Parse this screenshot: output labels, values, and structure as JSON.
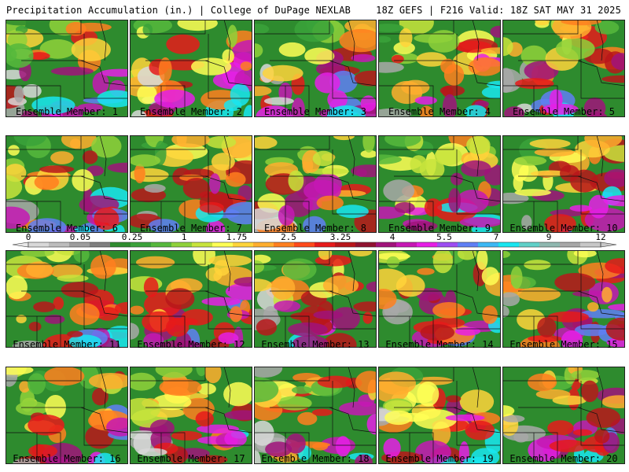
{
  "header": {
    "title_left": "Precipitation Accumulation (in.) | College of DuPage NEXLAB",
    "title_right": "18Z GEFS | F216 Valid: 18Z SAT MAY 31 2025"
  },
  "colorbar": {
    "tick_labels": [
      "0",
      "0.05",
      "0.25",
      "1",
      "1.75",
      "2.5",
      "3.25",
      "4",
      "5.5",
      "7",
      "9",
      "12"
    ],
    "colors": [
      "#d8d8d8",
      "#bdbdbd",
      "#9e9e9e",
      "#7f7f7f",
      "#2e8b2e",
      "#3aa23a",
      "#56b83c",
      "#8fd13a",
      "#c8e43c",
      "#ffff55",
      "#ffd43a",
      "#ffae2e",
      "#ff7f1f",
      "#ff4a1a",
      "#e61a1a",
      "#b8161a",
      "#8f1230",
      "#a0137a",
      "#c617b4",
      "#e61ee6",
      "#9d4df2",
      "#5f7ff5",
      "#3bb8f5",
      "#18e6f0",
      "#5fd0c8",
      "#8fb8b0",
      "#a8a8a8",
      "#c8c8c8"
    ]
  },
  "members": [
    {
      "label": "Ensemble Member: 1"
    },
    {
      "label": "Ensemble Member: 2"
    },
    {
      "label": "Ensemble Member: 3"
    },
    {
      "label": "Ensemble Member: 4"
    },
    {
      "label": "Ensemble Member: 5"
    },
    {
      "label": "Ensemble Member: 6"
    },
    {
      "label": "Ensemble Member: 7"
    },
    {
      "label": "Ensemble Member: 8"
    },
    {
      "label": "Ensemble Member: 9"
    },
    {
      "label": "Ensemble Member: 10"
    },
    {
      "label": "Ensemble Member: 11"
    },
    {
      "label": "Ensemble Member: 12"
    },
    {
      "label": "Ensemble Member: 13"
    },
    {
      "label": "Ensemble Member: 14"
    },
    {
      "label": "Ensemble Member: 15"
    },
    {
      "label": "Ensemble Member: 16"
    },
    {
      "label": "Ensemble Member: 17"
    },
    {
      "label": "Ensemble Member: 18"
    },
    {
      "label": "Ensemble Member: 19"
    },
    {
      "label": "Ensemble Member: 20"
    }
  ]
}
